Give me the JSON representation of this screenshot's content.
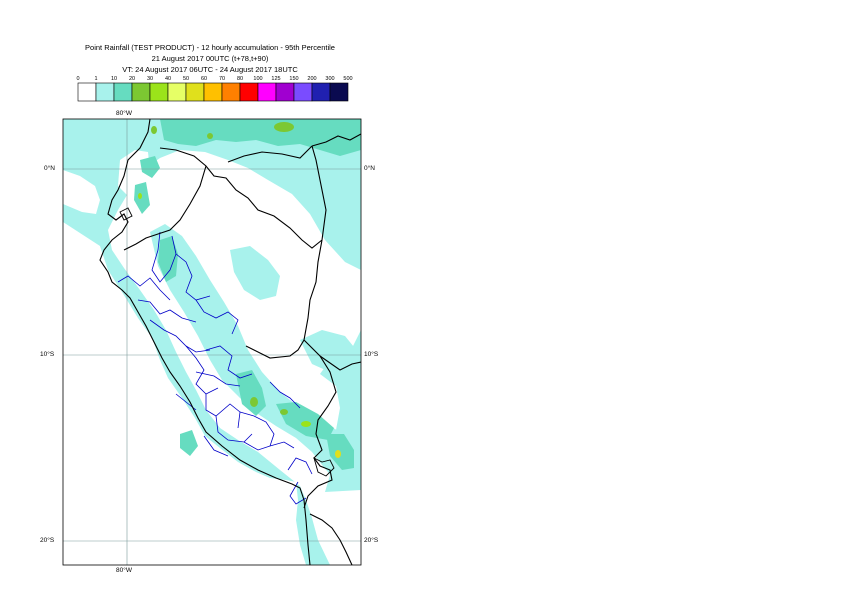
{
  "title": {
    "line1": "Point Rainfall (TEST PRODUCT) - 12 hourly accumulation - 95th Percentile",
    "line2": "21 August 2017 00UTC (t+78,t+90)",
    "line3": "VT: 24 August 2017 06UTC - 24 August 2017 18UTC"
  },
  "legend": {
    "thresholds": [
      "0",
      "1",
      "10",
      "20",
      "30",
      "40",
      "50",
      "60",
      "70",
      "80",
      "100",
      "125",
      "150",
      "200",
      "300",
      "500"
    ],
    "colors": [
      "#ffffff",
      "#a8f2ec",
      "#66dcc0",
      "#7cc832",
      "#9be31a",
      "#e6ff66",
      "#e0e01c",
      "#ffc000",
      "#ff8000",
      "#ff0000",
      "#ff00ff",
      "#a000d0",
      "#7a4cff",
      "#2020b0",
      "#0a0a50"
    ]
  },
  "map": {
    "lon_labels_top": [
      "80°W"
    ],
    "lon_labels_bottom": [
      "80°W"
    ],
    "lat_labels_left": [
      "0°N",
      "10°S",
      "20°S"
    ],
    "lat_labels_right": [
      "0°N",
      "10°S",
      "20°S"
    ],
    "colors": {
      "sea": "#a8f2ec",
      "land": "#ffffff",
      "band_10_20": "#66dcc0",
      "band_20_30": "#7cc832",
      "band_30_40": "#9be31a",
      "band_50_60": "#e0e01c",
      "coast": "#000000",
      "admin": "#0000c8",
      "grid": "#7a9a9a"
    }
  }
}
